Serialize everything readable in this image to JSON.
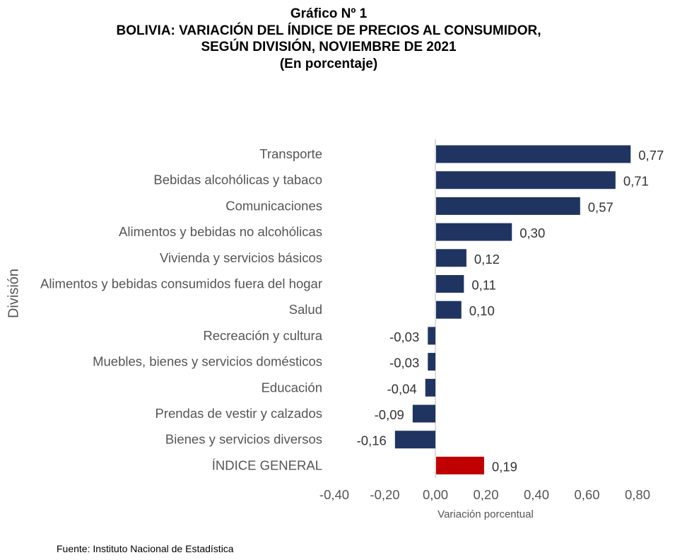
{
  "title_lines": [
    "Gráfico Nº 1",
    "BOLIVIA: VARIACIÓN DEL ÍNDICE DE PRECIOS AL CONSUMIDOR,",
    "SEGÚN DIVISIÓN, NOVIEMBRE DE 2021",
    "(En porcentaje)"
  ],
  "source": "Fuente: Instituto Nacional de Estadística",
  "colors": {
    "bar": "#1f3461",
    "highlight": "#c00000",
    "zero_line": "#d0d0d0"
  },
  "chart_data": {
    "type": "bar",
    "orientation": "horizontal",
    "title": "Gráfico Nº 1 BOLIVIA: VARIACIÓN DEL ÍNDICE DE PRECIOS AL CONSUMIDOR, SEGÚN DIVISIÓN, NOVIEMBRE DE 2021 (En porcentaje)",
    "xlabel": "Variación porcentual",
    "ylabel": "División",
    "xlim": [
      -0.4,
      0.8
    ],
    "xticks": [
      -0.4,
      -0.2,
      0.0,
      0.2,
      0.4,
      0.6,
      0.8
    ],
    "xtick_labels": [
      "-0,40",
      "-0,20",
      "0,00",
      "0,20",
      "0,40",
      "0,60",
      "0,80"
    ],
    "grid": false,
    "categories": [
      "Transporte",
      "Bebidas alcohólicas y tabaco",
      "Comunicaciones",
      "Alimentos y bebidas no alcohólicas",
      "Vivienda y servicios básicos",
      "Alimentos y bebidas consumidos fuera del hogar",
      "Salud",
      "Recreación y cultura",
      "Muebles, bienes y servicios domésticos",
      "Educación",
      "Prendas de vestir y calzados",
      "Bienes y servicios diversos",
      "ÍNDICE GENERAL"
    ],
    "values": [
      0.77,
      0.71,
      0.57,
      0.3,
      0.12,
      0.11,
      0.1,
      -0.03,
      -0.03,
      -0.04,
      -0.09,
      -0.16,
      0.19
    ],
    "value_labels": [
      "0,77",
      "0,71",
      "0,57",
      "0,30",
      "0,12",
      "0,11",
      "0,10",
      "-0,03",
      "-0,03",
      "-0,04",
      "-0,09",
      "-0,16",
      "0,19"
    ],
    "highlighted_category": "ÍNDICE GENERAL"
  }
}
